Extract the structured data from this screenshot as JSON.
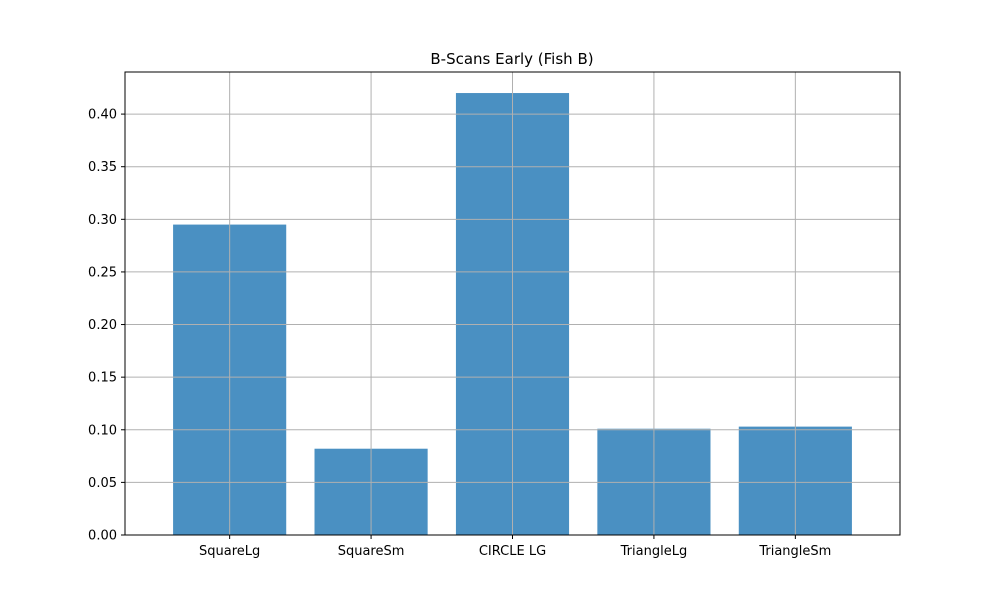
{
  "chart_data": {
    "type": "bar",
    "title": "B-Scans Early (Fish B)",
    "xlabel": "",
    "ylabel": "",
    "categories": [
      "SquareLg",
      "SquareSm",
      "CIRCLE LG",
      "TriangleLg",
      "TriangleSm"
    ],
    "values": [
      0.295,
      0.082,
      0.42,
      0.101,
      0.103
    ],
    "ylim": [
      0,
      0.44
    ],
    "yticks": [
      "0.00",
      "0.05",
      "0.10",
      "0.15",
      "0.20",
      "0.25",
      "0.30",
      "0.35",
      "0.40"
    ],
    "grid": true,
    "bar_color": "#4a90c2"
  }
}
